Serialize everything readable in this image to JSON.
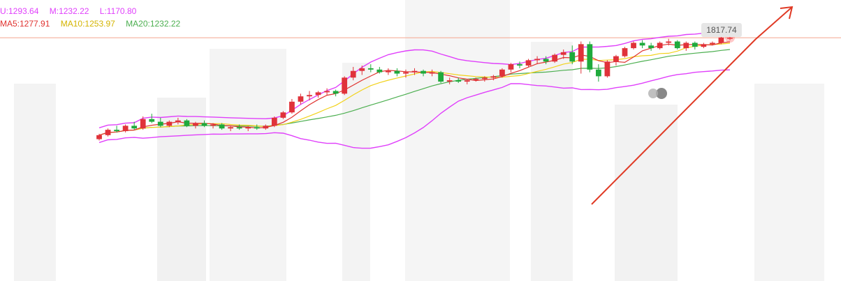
{
  "legend": {
    "boll_upper": "U:1293.64",
    "boll_mid": "M:1232.22",
    "boll_lower": "L:1170.80",
    "ma5": "MA5:1277.91",
    "ma10": "MA10:1253.97",
    "ma20": "MA20:1232.22"
  },
  "price_tag": "1817.74",
  "colors": {
    "boll": "#e040fb",
    "ma5": "#e0322f",
    "ma10": "#f2d21b",
    "ma20": "#4caf50",
    "up": "#e0323a",
    "down": "#1faa3c",
    "price_line": "#f4a48e",
    "trend": "#e03a25",
    "watermark": "#d9d9d9",
    "marker": "#888888"
  },
  "marker_icon": "event-marker-icon",
  "chart_data": {
    "type": "candlestick",
    "y_range": [
      0,
      2100
    ],
    "last_price": 1817.74,
    "candles": [
      {
        "o": 1060,
        "h": 1100,
        "l": 1050,
        "c": 1090
      },
      {
        "o": 1090,
        "h": 1140,
        "l": 1080,
        "c": 1130
      },
      {
        "o": 1130,
        "h": 1160,
        "l": 1110,
        "c": 1120
      },
      {
        "o": 1120,
        "h": 1170,
        "l": 1110,
        "c": 1160
      },
      {
        "o": 1160,
        "h": 1190,
        "l": 1130,
        "c": 1140
      },
      {
        "o": 1140,
        "h": 1230,
        "l": 1130,
        "c": 1210
      },
      {
        "o": 1210,
        "h": 1250,
        "l": 1180,
        "c": 1190
      },
      {
        "o": 1190,
        "h": 1220,
        "l": 1150,
        "c": 1160
      },
      {
        "o": 1160,
        "h": 1200,
        "l": 1150,
        "c": 1190
      },
      {
        "o": 1190,
        "h": 1220,
        "l": 1170,
        "c": 1200
      },
      {
        "o": 1200,
        "h": 1210,
        "l": 1150,
        "c": 1160
      },
      {
        "o": 1160,
        "h": 1190,
        "l": 1140,
        "c": 1180
      },
      {
        "o": 1180,
        "h": 1200,
        "l": 1150,
        "c": 1160
      },
      {
        "o": 1160,
        "h": 1180,
        "l": 1140,
        "c": 1170
      },
      {
        "o": 1170,
        "h": 1180,
        "l": 1130,
        "c": 1140
      },
      {
        "o": 1140,
        "h": 1160,
        "l": 1120,
        "c": 1150
      },
      {
        "o": 1150,
        "h": 1170,
        "l": 1130,
        "c": 1140
      },
      {
        "o": 1140,
        "h": 1160,
        "l": 1120,
        "c": 1150
      },
      {
        "o": 1150,
        "h": 1170,
        "l": 1130,
        "c": 1140
      },
      {
        "o": 1140,
        "h": 1170,
        "l": 1130,
        "c": 1160
      },
      {
        "o": 1160,
        "h": 1230,
        "l": 1150,
        "c": 1220
      },
      {
        "o": 1220,
        "h": 1270,
        "l": 1210,
        "c": 1260
      },
      {
        "o": 1260,
        "h": 1360,
        "l": 1250,
        "c": 1340
      },
      {
        "o": 1340,
        "h": 1400,
        "l": 1320,
        "c": 1380
      },
      {
        "o": 1380,
        "h": 1420,
        "l": 1350,
        "c": 1390
      },
      {
        "o": 1390,
        "h": 1420,
        "l": 1370,
        "c": 1410
      },
      {
        "o": 1410,
        "h": 1440,
        "l": 1390,
        "c": 1420
      },
      {
        "o": 1420,
        "h": 1430,
        "l": 1380,
        "c": 1400
      },
      {
        "o": 1400,
        "h": 1530,
        "l": 1390,
        "c": 1520
      },
      {
        "o": 1520,
        "h": 1600,
        "l": 1500,
        "c": 1570
      },
      {
        "o": 1570,
        "h": 1610,
        "l": 1540,
        "c": 1590
      },
      {
        "o": 1590,
        "h": 1620,
        "l": 1560,
        "c": 1580
      },
      {
        "o": 1580,
        "h": 1600,
        "l": 1550,
        "c": 1560
      },
      {
        "o": 1560,
        "h": 1590,
        "l": 1540,
        "c": 1570
      },
      {
        "o": 1570,
        "h": 1590,
        "l": 1530,
        "c": 1550
      },
      {
        "o": 1550,
        "h": 1580,
        "l": 1520,
        "c": 1560
      },
      {
        "o": 1560,
        "h": 1590,
        "l": 1540,
        "c": 1570
      },
      {
        "o": 1570,
        "h": 1580,
        "l": 1530,
        "c": 1550
      },
      {
        "o": 1550,
        "h": 1580,
        "l": 1530,
        "c": 1560
      },
      {
        "o": 1560,
        "h": 1570,
        "l": 1480,
        "c": 1490
      },
      {
        "o": 1490,
        "h": 1520,
        "l": 1470,
        "c": 1500
      },
      {
        "o": 1500,
        "h": 1520,
        "l": 1480,
        "c": 1490
      },
      {
        "o": 1490,
        "h": 1510,
        "l": 1470,
        "c": 1500
      },
      {
        "o": 1500,
        "h": 1520,
        "l": 1490,
        "c": 1510
      },
      {
        "o": 1510,
        "h": 1530,
        "l": 1490,
        "c": 1520
      },
      {
        "o": 1520,
        "h": 1540,
        "l": 1500,
        "c": 1530
      },
      {
        "o": 1530,
        "h": 1590,
        "l": 1520,
        "c": 1580
      },
      {
        "o": 1580,
        "h": 1630,
        "l": 1560,
        "c": 1620
      },
      {
        "o": 1620,
        "h": 1640,
        "l": 1590,
        "c": 1610
      },
      {
        "o": 1610,
        "h": 1660,
        "l": 1600,
        "c": 1650
      },
      {
        "o": 1650,
        "h": 1680,
        "l": 1620,
        "c": 1660
      },
      {
        "o": 1660,
        "h": 1680,
        "l": 1620,
        "c": 1640
      },
      {
        "o": 1640,
        "h": 1700,
        "l": 1630,
        "c": 1690
      },
      {
        "o": 1690,
        "h": 1730,
        "l": 1660,
        "c": 1710
      },
      {
        "o": 1710,
        "h": 1760,
        "l": 1620,
        "c": 1640
      },
      {
        "o": 1640,
        "h": 1790,
        "l": 1550,
        "c": 1770
      },
      {
        "o": 1770,
        "h": 1790,
        "l": 1560,
        "c": 1580
      },
      {
        "o": 1580,
        "h": 1620,
        "l": 1490,
        "c": 1530
      },
      {
        "o": 1530,
        "h": 1650,
        "l": 1520,
        "c": 1640
      },
      {
        "o": 1640,
        "h": 1690,
        "l": 1610,
        "c": 1680
      },
      {
        "o": 1680,
        "h": 1750,
        "l": 1670,
        "c": 1740
      },
      {
        "o": 1740,
        "h": 1790,
        "l": 1730,
        "c": 1780
      },
      {
        "o": 1780,
        "h": 1800,
        "l": 1740,
        "c": 1760
      },
      {
        "o": 1760,
        "h": 1780,
        "l": 1720,
        "c": 1740
      },
      {
        "o": 1740,
        "h": 1790,
        "l": 1730,
        "c": 1780
      },
      {
        "o": 1780,
        "h": 1810,
        "l": 1760,
        "c": 1790
      },
      {
        "o": 1790,
        "h": 1800,
        "l": 1730,
        "c": 1740
      },
      {
        "o": 1740,
        "h": 1790,
        "l": 1720,
        "c": 1780
      },
      {
        "o": 1780,
        "h": 1790,
        "l": 1730,
        "c": 1750
      },
      {
        "o": 1750,
        "h": 1780,
        "l": 1740,
        "c": 1770
      },
      {
        "o": 1770,
        "h": 1790,
        "l": 1760,
        "c": 1780
      },
      {
        "o": 1780,
        "h": 1830,
        "l": 1770,
        "c": 1820
      },
      {
        "o": 1810,
        "h": 1840,
        "l": 1800,
        "c": 1818
      }
    ]
  }
}
